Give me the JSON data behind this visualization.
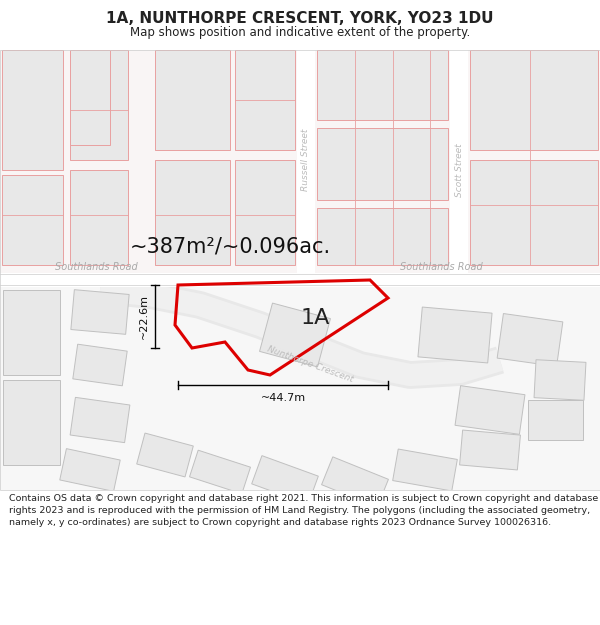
{
  "title": "1A, NUNTHORPE CRESCENT, YORK, YO23 1DU",
  "subtitle": "Map shows position and indicative extent of the property.",
  "area_text": "~387m²/~0.096ac.",
  "label_1A": "1A",
  "dim_width": "~44.7m",
  "dim_height": "~22.6m",
  "street_russell": "Russell Street",
  "street_scott": "Scott Street",
  "street_southlands1": "Southlands Road",
  "street_southlands2": "Southlands Road",
  "street_nunthorpe": "Nunthorpe Crescent",
  "footer": "Contains OS data © Crown copyright and database right 2021. This information is subject to Crown copyright and database rights 2023 and is reproduced with the permission of HM Land Registry. The polygons (including the associated geometry, namely x, y co-ordinates) are subject to Crown copyright and database rights 2023 Ordnance Survey 100026316.",
  "bg_color": "#ffffff",
  "map_bg": "#ffffff",
  "building_fill": "#e8e8e8",
  "building_edge_red": "#e8a0a0",
  "building_edge_gray": "#c0c0c0",
  "road_color": "#ffffff",
  "highlight_color": "#dd0000",
  "text_color": "#222222",
  "street_text_color": "#bbbbbb",
  "title_fontsize": 11,
  "subtitle_fontsize": 8.5,
  "footer_fontsize": 6.8,
  "area_fontsize": 15,
  "label_1A_fontsize": 16
}
